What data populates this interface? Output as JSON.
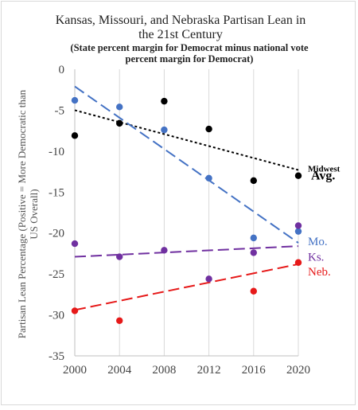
{
  "chart_data": {
    "type": "scatter",
    "title": "Kansas, Missouri, and Nebraska Partisan Lean in the 21st Century",
    "title_lines": [
      "Kansas, Missouri, and Nebraska Partisan Lean in",
      "the 21st Century"
    ],
    "subtitle": "(State percent margin for Democrat minus national vote percent margin for Democrat)",
    "subtitle_lines": [
      "(State percent margin for Democrat minus national vote",
      "percent margin for Democrat)"
    ],
    "xlabel": "",
    "ylabel": "Partisan Lean Percentage (Positive = More Democratic than US Overall)",
    "ylabel_lines": [
      "Partisan Lean Percentage (Positive = More Democratic than",
      "US Overall)"
    ],
    "x": [
      2000,
      2004,
      2008,
      2012,
      2016,
      2020
    ],
    "xlim": [
      2000,
      2020
    ],
    "ylim": [
      -35,
      0
    ],
    "x_ticks": [
      "2000",
      "2004",
      "2008",
      "2012",
      "2016",
      "2020"
    ],
    "y_ticks": [
      "0",
      "-5",
      "-10",
      "-15",
      "-20",
      "-25",
      "-30",
      "-35"
    ],
    "y_tick_values": [
      0,
      -5,
      -10,
      -15,
      -20,
      -25,
      -30,
      -35
    ],
    "grid": "vertical",
    "legend": "inline-labels-right",
    "series": [
      {
        "name": "Midwest Avg.",
        "label_lines": [
          "Midwest",
          "Avg."
        ],
        "color": "#000000",
        "values": [
          -8.1,
          -6.6,
          -3.9,
          -7.3,
          -13.6,
          -13.0
        ],
        "trendline": [
          -5.0,
          -12.3
        ],
        "trend_style": "dotted"
      },
      {
        "name": "Mo.",
        "label_lines": [
          "Mo."
        ],
        "color": "#4472c4",
        "values": [
          -3.8,
          -4.6,
          -7.4,
          -13.3,
          -20.6,
          -19.8
        ],
        "trendline": [
          -2.1,
          -21.2
        ],
        "trend_style": "dashed"
      },
      {
        "name": "Ks.",
        "label_lines": [
          "Ks."
        ],
        "color": "#7030a0",
        "values": [
          -21.3,
          -22.9,
          -22.1,
          -25.6,
          -22.4,
          -19.1
        ],
        "trendline": [
          -22.9,
          -21.6
        ],
        "trend_style": "dashed"
      },
      {
        "name": "Neb.",
        "label_lines": [
          "Neb."
        ],
        "color": "#e61919",
        "values": [
          -29.5,
          -30.7,
          null,
          null,
          -27.1,
          -23.6
        ],
        "trendline": [
          -29.4,
          -23.8
        ],
        "trend_style": "dashed"
      }
    ]
  }
}
